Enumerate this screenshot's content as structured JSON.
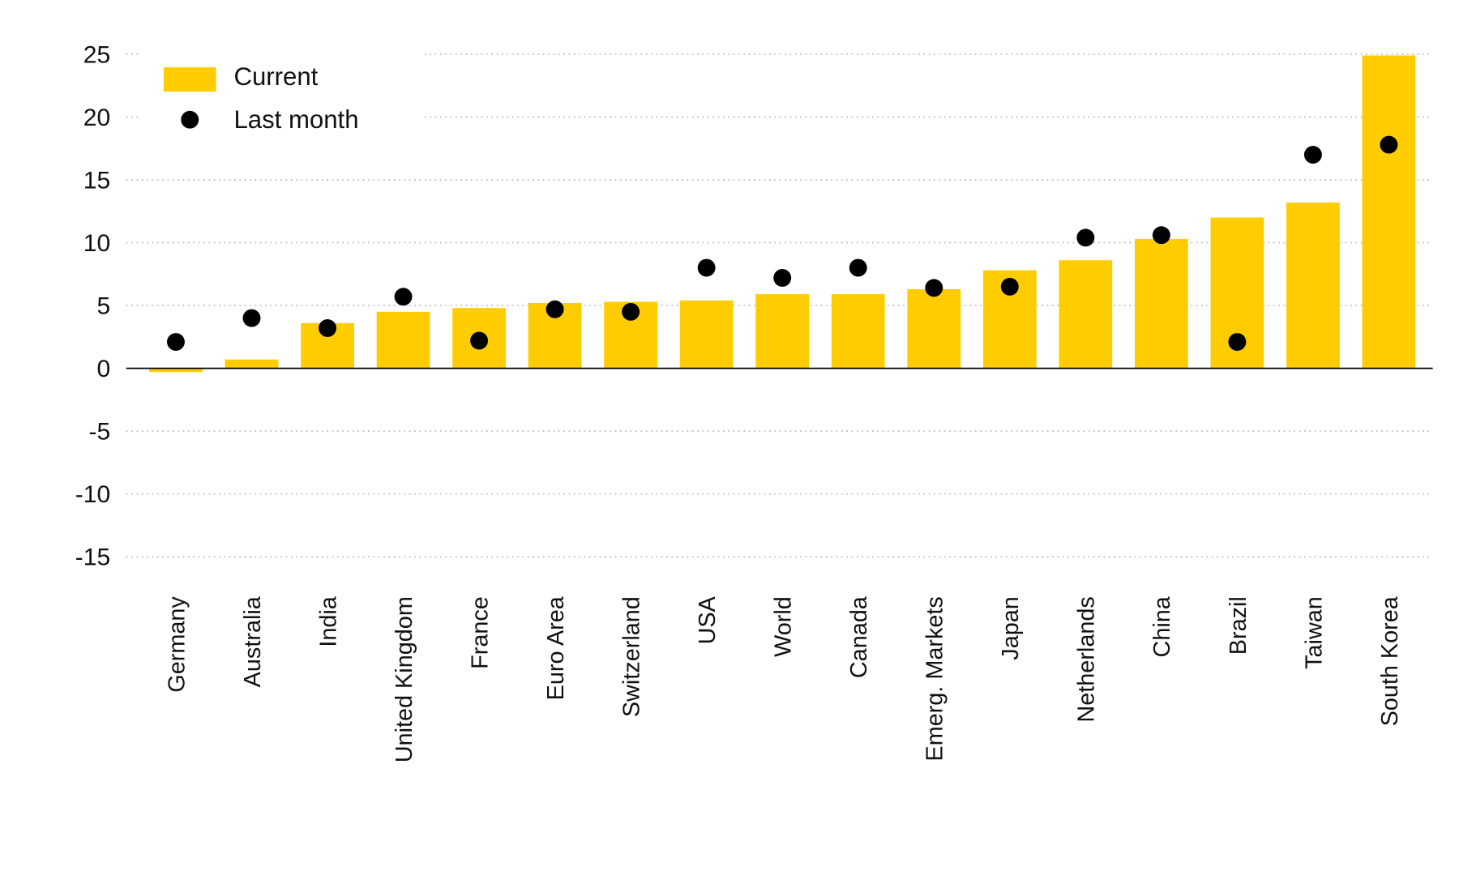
{
  "chart_data": {
    "type": "bar",
    "categories": [
      "Germany",
      "Australia",
      "India",
      "United Kingdom",
      "France",
      "Euro Area",
      "Switzerland",
      "USA",
      "World",
      "Canada",
      "Emerg. Markets",
      "Japan",
      "Netherlands",
      "China",
      "Brazil",
      "Taiwan",
      "South Korea"
    ],
    "series": [
      {
        "name": "Current",
        "type": "bar",
        "color": "#ffcc00",
        "values": [
          -0.3,
          0.7,
          3.6,
          4.5,
          4.8,
          5.2,
          5.3,
          5.4,
          5.9,
          5.9,
          6.3,
          7.8,
          8.6,
          10.3,
          12.0,
          13.2,
          24.9
        ]
      },
      {
        "name": "Last month",
        "type": "scatter",
        "color": "#000000",
        "values": [
          2.1,
          4.0,
          3.2,
          5.7,
          2.2,
          4.7,
          4.5,
          8.0,
          7.2,
          8.0,
          6.4,
          6.5,
          10.4,
          10.6,
          2.1,
          17.0,
          17.8
        ]
      }
    ],
    "ylim": [
      -15.3,
      25.3
    ],
    "yticks": [
      -15,
      -10,
      -5,
      0,
      5,
      10,
      15,
      20,
      25
    ],
    "grid": true,
    "legend": "upper left"
  }
}
